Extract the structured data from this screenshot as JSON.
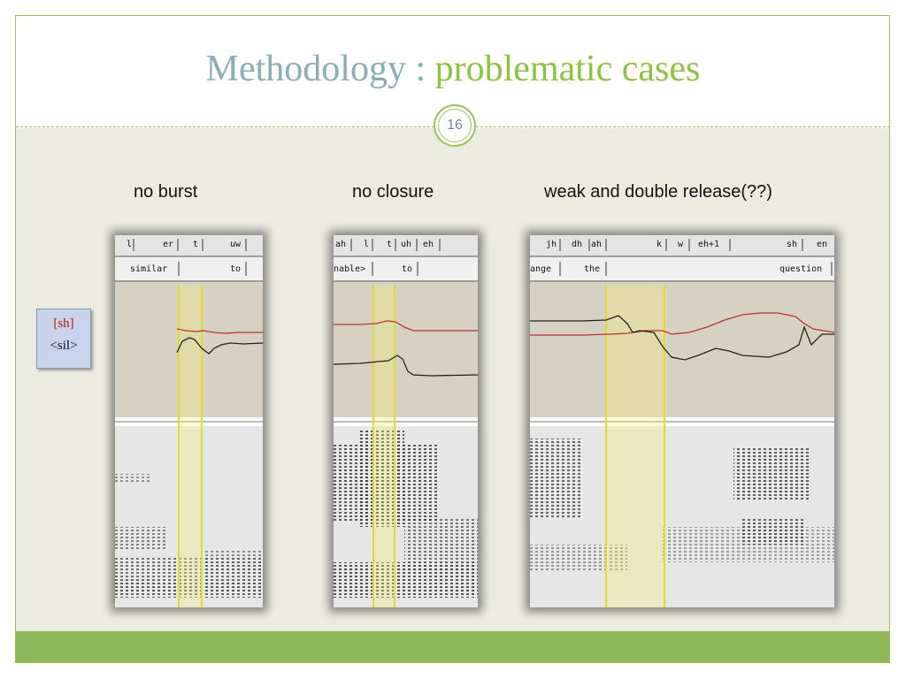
{
  "slide": {
    "title_part1": "Methodology : ",
    "title_part2": "problematic cases",
    "page_number": "16"
  },
  "captions": {
    "no_burst": "no burst",
    "no_closure": "no closure",
    "weak_double": "weak and double release(??)"
  },
  "legend": {
    "line1": "[sh]",
    "line2": "<sil>",
    "line1_color": "#c01010"
  },
  "panels": {
    "no_burst": {
      "phones": [
        "l",
        "er",
        "t",
        "uw"
      ],
      "words": [
        "similar",
        "to"
      ]
    },
    "no_closure": {
      "phones": [
        "ah",
        "l",
        "t",
        "uh",
        "eh"
      ],
      "words": [
        "nable>",
        "to"
      ]
    },
    "weak_double": {
      "phones": [
        "jh",
        "dh",
        "ah",
        "k",
        "w",
        "eh+1",
        "sh",
        "en"
      ],
      "words": [
        "ange",
        "the",
        "question"
      ]
    }
  },
  "colors": {
    "accent_green": "#8cb857",
    "title_blue": "#8aaeb3",
    "title_green": "#8cc43e",
    "highlight_yellow": "#f4ee7a",
    "red_track": "#c03030"
  }
}
